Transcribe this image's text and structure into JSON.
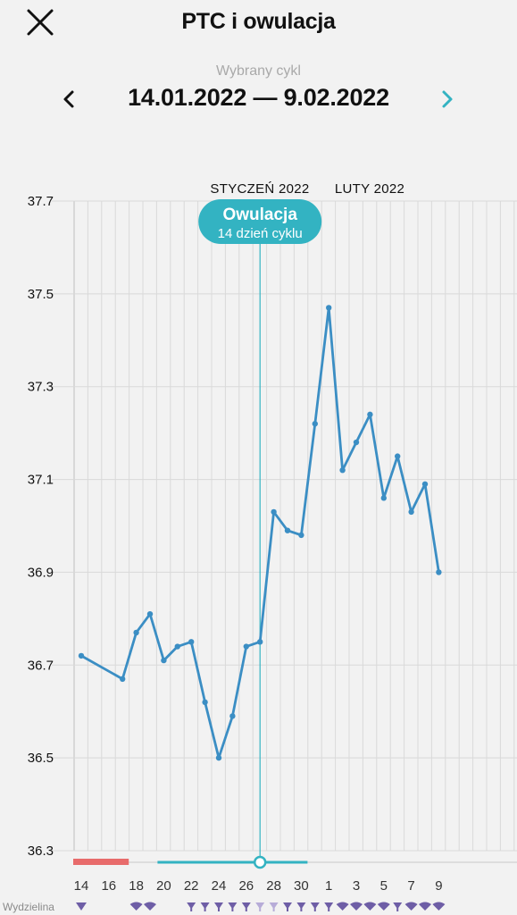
{
  "header": {
    "title": "PTC i owulacja",
    "close_icon": "close-icon",
    "cycle_label": "Wybrany cykl",
    "cycle_range": "14.01.2022 — 9.02.2022",
    "prev_icon": "chevron-left-icon",
    "next_icon": "chevron-right-icon"
  },
  "colors": {
    "line": "#3b8ec4",
    "accent": "#33b3c2",
    "period": "#e86b6b",
    "mucus": "#6e5ea6",
    "grid": "#d9d9d9",
    "background": "#f2f2f2"
  },
  "ovulation": {
    "title": "Owulacja",
    "subtitle": "14 dzień cyklu"
  },
  "chart_data": {
    "type": "line",
    "months": [
      "STYCZEŃ 2022",
      "LUTY 2022"
    ],
    "x_tick_labels": [
      "14",
      "16",
      "18",
      "20",
      "22",
      "24",
      "26",
      "28",
      "30",
      "1",
      "3",
      "5",
      "7",
      "9"
    ],
    "yticks": [
      "37.7",
      "37.5",
      "37.3",
      "37.1",
      "36.9",
      "36.7",
      "36.5",
      "36.3"
    ],
    "ylim": [
      36.3,
      37.7
    ],
    "grid": true,
    "days": [
      "14",
      "15",
      "16",
      "17",
      "18",
      "19",
      "20",
      "21",
      "22",
      "23",
      "24",
      "25",
      "26",
      "27",
      "28",
      "29",
      "30",
      "31",
      "1",
      "2",
      "3",
      "4",
      "5",
      "6",
      "7",
      "8",
      "9"
    ],
    "series": [
      {
        "values": [
          36.72,
          null,
          null,
          36.67,
          36.77,
          36.81,
          36.71,
          36.74,
          36.75,
          36.62,
          36.5,
          36.59,
          36.74,
          36.75,
          37.03,
          36.99,
          36.98,
          37.22,
          37.47,
          37.12,
          37.18,
          37.24,
          37.06,
          37.15,
          37.03,
          37.09,
          36.9
        ]
      }
    ],
    "ovulation_day": "27",
    "period_days": [
      "14",
      "15",
      "16",
      "17"
    ],
    "fertile_days": [
      "20",
      "21",
      "22",
      "23",
      "24",
      "25",
      "26",
      "27",
      "28",
      "29",
      "30"
    ],
    "mucus_label": "Wydzielina",
    "mucus": [
      {
        "day": "14",
        "type": "dry"
      },
      {
        "day": "18",
        "type": "sticky"
      },
      {
        "day": "19",
        "type": "sticky"
      },
      {
        "day": "22",
        "type": "egg-white"
      },
      {
        "day": "23",
        "type": "egg-white"
      },
      {
        "day": "24",
        "type": "egg-white"
      },
      {
        "day": "25",
        "type": "egg-white"
      },
      {
        "day": "26",
        "type": "egg-white"
      },
      {
        "day": "27",
        "type": "watery"
      },
      {
        "day": "28",
        "type": "watery"
      },
      {
        "day": "29",
        "type": "egg-white"
      },
      {
        "day": "30",
        "type": "egg-white"
      },
      {
        "day": "31",
        "type": "egg-white"
      },
      {
        "day": "1",
        "type": "egg-white"
      },
      {
        "day": "2",
        "type": "sticky"
      },
      {
        "day": "3",
        "type": "sticky"
      },
      {
        "day": "4",
        "type": "sticky"
      },
      {
        "day": "5",
        "type": "sticky"
      },
      {
        "day": "6",
        "type": "egg-white"
      },
      {
        "day": "7",
        "type": "sticky"
      },
      {
        "day": "8",
        "type": "sticky"
      },
      {
        "day": "9",
        "type": "sticky"
      }
    ]
  }
}
